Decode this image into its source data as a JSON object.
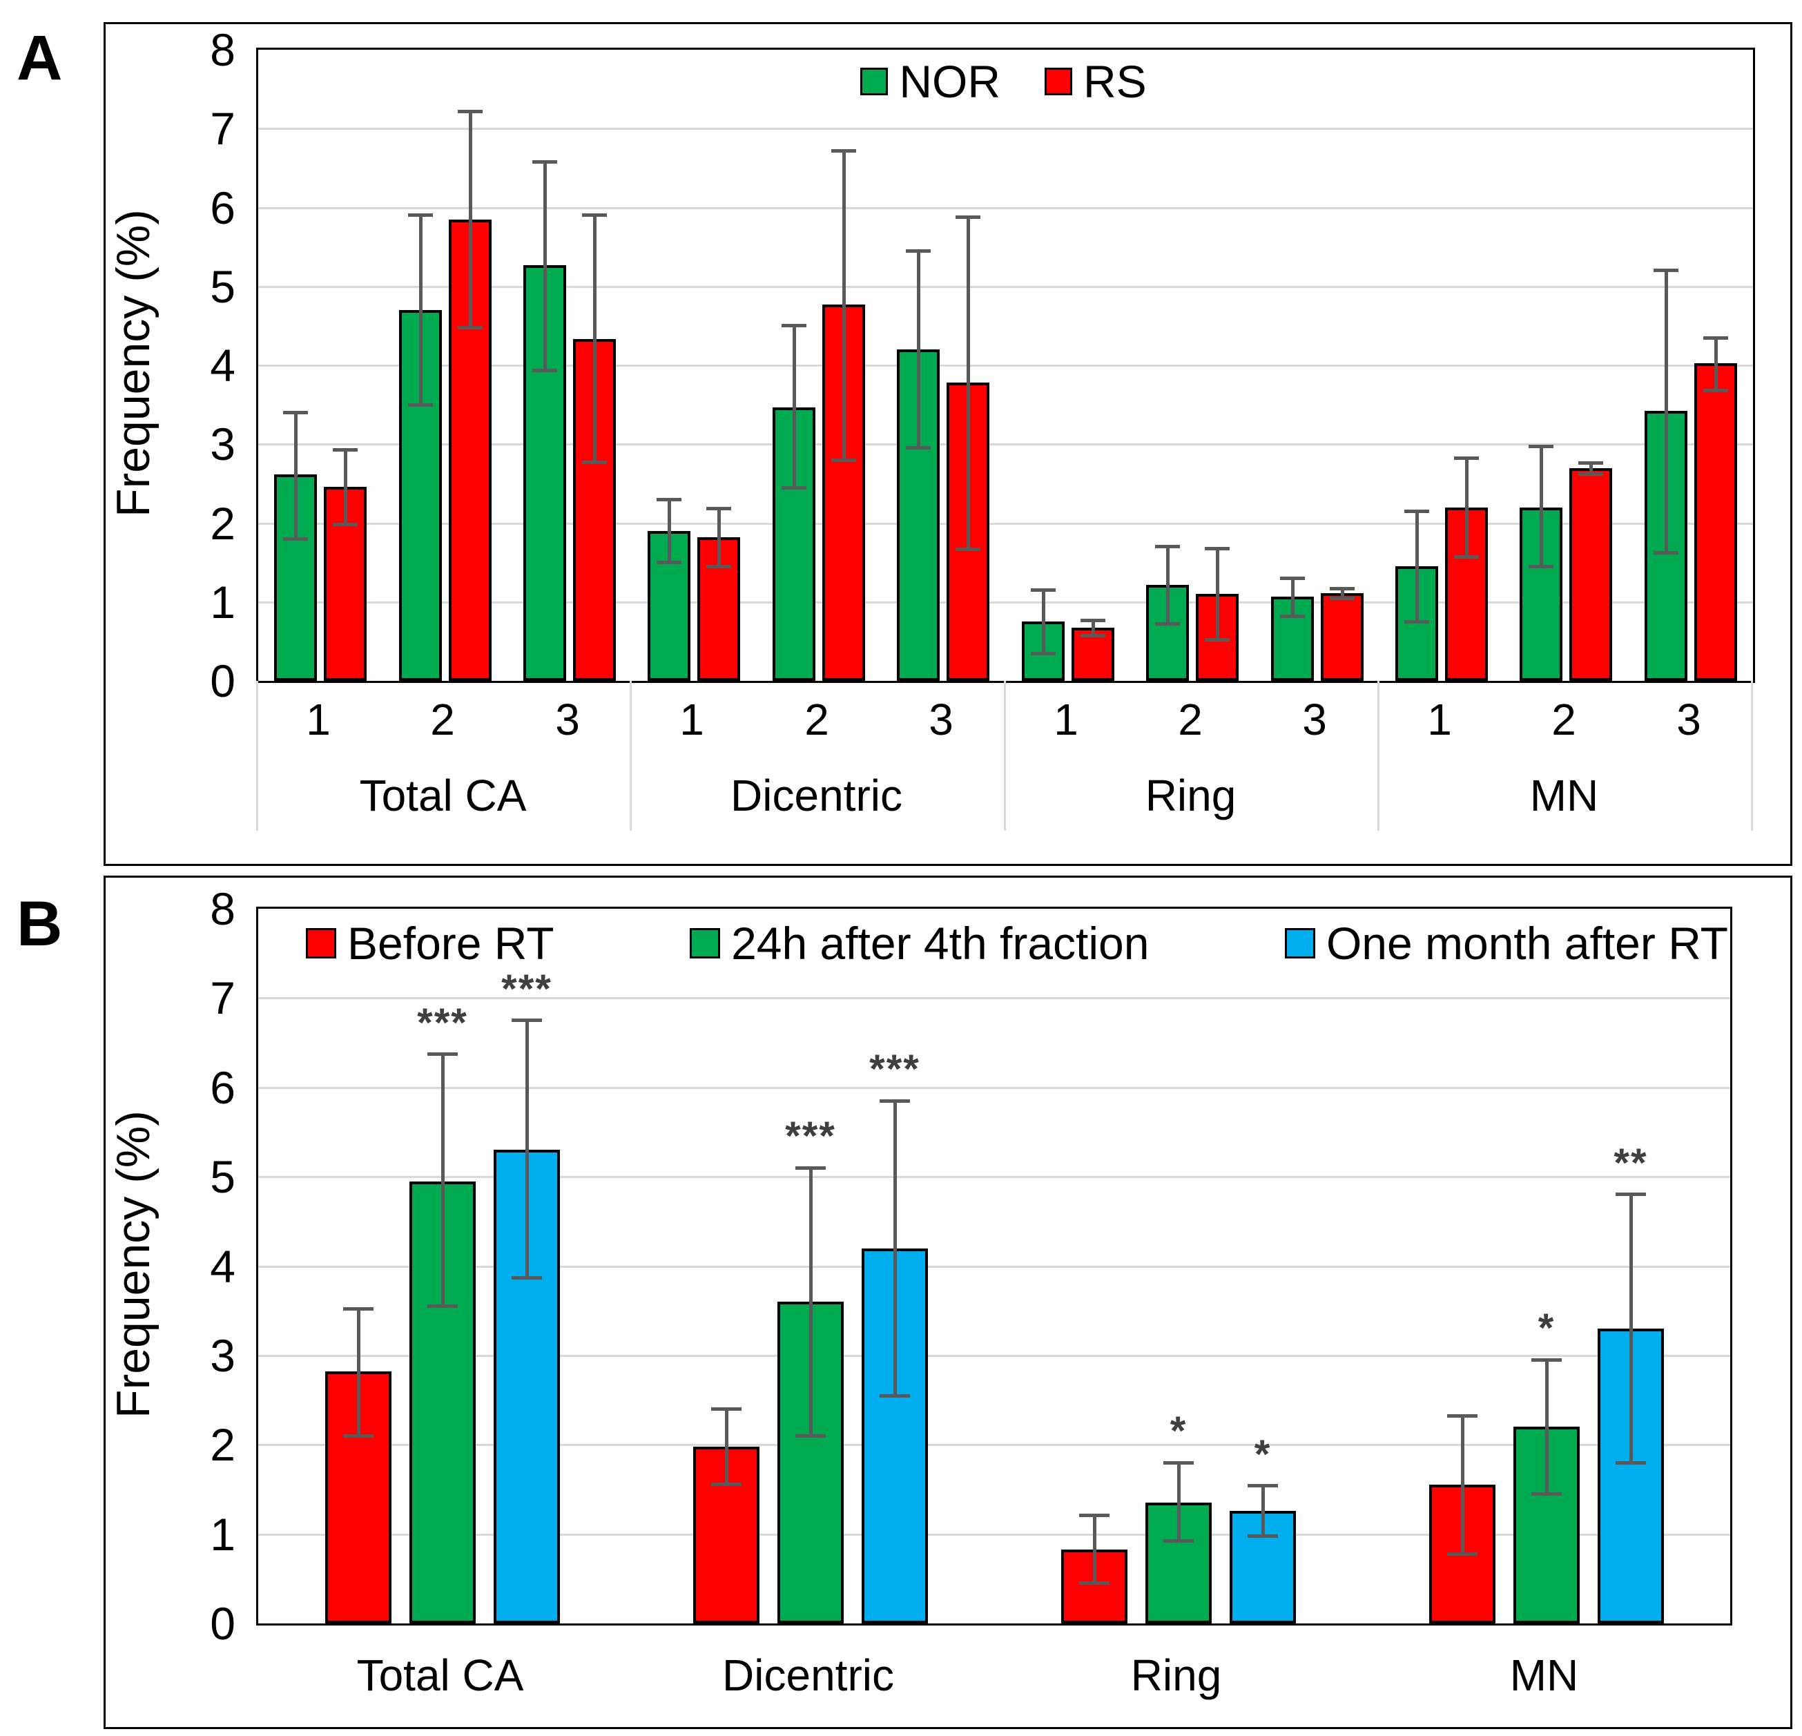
{
  "colors": {
    "nor_green": "#00AA50",
    "rs_red": "#FF0000",
    "after_blue": "#00AEEF",
    "error_bar": "#595959",
    "gridline": "#D9D9D9",
    "star": "#3F3F3F",
    "axis": "#000000"
  },
  "chart_data": [
    {
      "type": "bar",
      "panel_label": "A",
      "ylabel": "Frequency (%)",
      "ylim": [
        0,
        8
      ],
      "yticks": [
        "0",
        "1",
        "2",
        "3",
        "4",
        "5",
        "6",
        "7",
        "8"
      ],
      "grid": true,
      "legend_position": "top-center-inside",
      "categories": [
        "Total CA",
        "Dicentric",
        "Ring",
        "MN"
      ],
      "subgroups": [
        "1",
        "2",
        "3"
      ],
      "series": [
        {
          "name": "NOR",
          "color_key": "nor_green",
          "values": [
            2.62,
            4.7,
            5.27,
            1.9,
            3.47,
            4.2,
            0.75,
            1.22,
            1.07,
            1.45,
            2.2,
            3.42
          ],
          "err_low": [
            1.8,
            3.5,
            3.93,
            1.5,
            2.45,
            2.95,
            0.35,
            0.72,
            0.82,
            0.75,
            1.45,
            1.62
          ],
          "err_high": [
            3.4,
            5.9,
            6.58,
            2.3,
            4.5,
            5.45,
            1.15,
            1.7,
            1.3,
            2.15,
            2.97,
            5.2
          ]
        },
        {
          "name": "RS",
          "color_key": "rs_red",
          "values": [
            2.46,
            5.85,
            4.33,
            1.82,
            4.77,
            3.78,
            0.67,
            1.1,
            1.11,
            2.2,
            2.7,
            4.03
          ],
          "err_low": [
            1.98,
            4.48,
            2.77,
            1.45,
            2.8,
            1.67,
            0.57,
            0.52,
            1.05,
            1.57,
            2.62,
            3.68
          ],
          "err_high": [
            2.93,
            7.22,
            5.9,
            2.18,
            6.72,
            5.88,
            0.77,
            1.68,
            1.17,
            2.82,
            2.76,
            4.35
          ]
        }
      ]
    },
    {
      "type": "bar",
      "panel_label": "B",
      "ylabel": "Frequency (%)",
      "ylim": [
        0,
        8
      ],
      "yticks": [
        "0",
        "1",
        "2",
        "3",
        "4",
        "5",
        "6",
        "7",
        "8"
      ],
      "grid": true,
      "legend_position": "top-spread-inside",
      "categories": [
        "Total CA",
        "Dicentric",
        "Ring",
        "MN"
      ],
      "subgroups": null,
      "series": [
        {
          "name": "Before RT",
          "color_key": "rs_red",
          "values": [
            2.82,
            1.98,
            0.83,
            1.55
          ],
          "err_low": [
            2.1,
            1.56,
            0.45,
            0.78
          ],
          "err_high": [
            3.52,
            2.4,
            1.21,
            2.32
          ],
          "stars": [
            "",
            "",
            "",
            ""
          ]
        },
        {
          "name": "24h after 4th fraction",
          "color_key": "nor_green",
          "values": [
            4.95,
            3.6,
            1.35,
            2.2
          ],
          "err_low": [
            3.55,
            2.1,
            0.92,
            1.45
          ],
          "err_high": [
            6.37,
            5.1,
            1.8,
            2.95
          ],
          "stars": [
            "***",
            "***",
            "*",
            "*"
          ]
        },
        {
          "name": "One month after RT",
          "color_key": "after_blue",
          "values": [
            5.3,
            4.2,
            1.26,
            3.3
          ],
          "err_low": [
            3.87,
            2.55,
            0.98,
            1.8
          ],
          "err_high": [
            6.75,
            5.85,
            1.54,
            4.8
          ],
          "stars": [
            "***",
            "***",
            "*",
            "**"
          ]
        }
      ]
    }
  ]
}
